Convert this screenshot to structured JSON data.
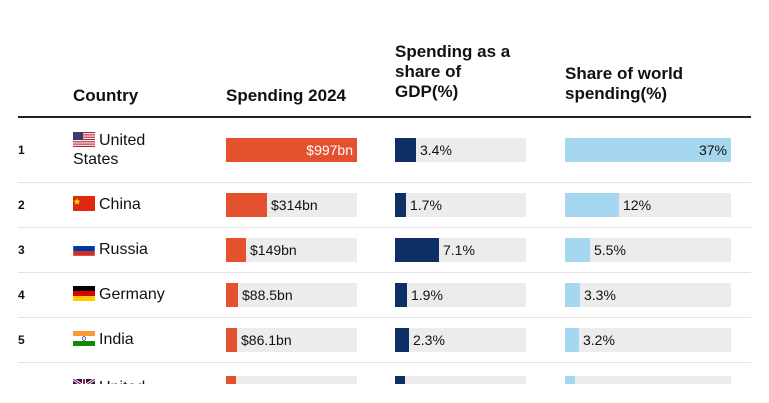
{
  "headers": {
    "country": "Country",
    "spending": "Spending 2024",
    "gdp_line1": "Spending as a",
    "gdp_line2": "share of",
    "gdp_line3": "GDP(%)",
    "share_line1": "Share of world",
    "share_line2": "spending(%)"
  },
  "colors": {
    "spending_bar": "#e4512e",
    "gdp_bar": "#0e2f63",
    "share_bar": "#a5d8f0",
    "track": "#ececec"
  },
  "rows": [
    {
      "rank": "1",
      "country_line1": "United",
      "country_line2": "States",
      "flag": "us-flag-icon",
      "spending_label": "$997bn",
      "gdp_label": "3.4%",
      "share_label": "37%"
    },
    {
      "rank": "2",
      "country_line1": "China",
      "country_line2": "",
      "flag": "china-flag-icon",
      "spending_label": "$314bn",
      "gdp_label": "1.7%",
      "share_label": "12%"
    },
    {
      "rank": "3",
      "country_line1": "Russia",
      "country_line2": "",
      "flag": "russia-flag-icon",
      "spending_label": "$149bn",
      "gdp_label": "7.1%",
      "share_label": "5.5%"
    },
    {
      "rank": "4",
      "country_line1": "Germany",
      "country_line2": "",
      "flag": "germany-flag-icon",
      "spending_label": "$88.5bn",
      "gdp_label": "1.9%",
      "share_label": "3.3%"
    },
    {
      "rank": "5",
      "country_line1": "India",
      "country_line2": "",
      "flag": "india-flag-icon",
      "spending_label": "$86.1bn",
      "gdp_label": "2.3%",
      "share_label": "3.2%"
    },
    {
      "rank": "",
      "country_line1": "United",
      "country_line2": "",
      "flag": "uk-flag-icon",
      "spending_label": "",
      "gdp_label": "",
      "share_label": ""
    }
  ],
  "chart_data": {
    "type": "table",
    "columns": [
      "Country",
      "Spending 2024",
      "Spending as a share of GDP(%)",
      "Share of world spending(%)"
    ],
    "rows": [
      {
        "rank": 1,
        "country": "United States",
        "spending_bn": 997,
        "gdp_share_pct": 3.4,
        "world_share_pct": 37
      },
      {
        "rank": 2,
        "country": "China",
        "spending_bn": 314,
        "gdp_share_pct": 1.7,
        "world_share_pct": 12
      },
      {
        "rank": 3,
        "country": "Russia",
        "spending_bn": 149,
        "gdp_share_pct": 7.1,
        "world_share_pct": 5.5
      },
      {
        "rank": 4,
        "country": "Germany",
        "spending_bn": 88.5,
        "gdp_share_pct": 1.9,
        "world_share_pct": 3.3
      },
      {
        "rank": 5,
        "country": "India",
        "spending_bn": 86.1,
        "gdp_share_pct": 2.3,
        "world_share_pct": 3.2
      }
    ],
    "column_max": {
      "spending_bn": 997,
      "gdp_share_pct": 21,
      "world_share_pct": 37
    }
  }
}
